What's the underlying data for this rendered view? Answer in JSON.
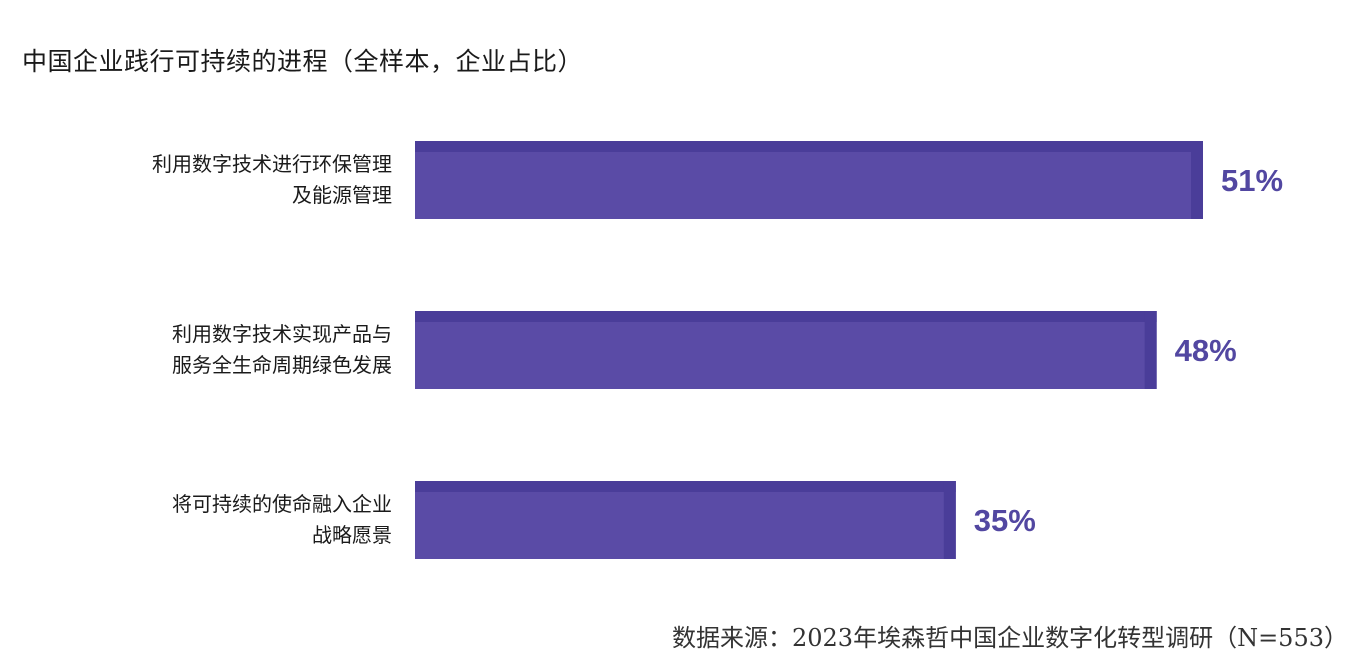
{
  "chart_data": {
    "type": "bar",
    "orientation": "horizontal",
    "title": "中国企业践行可持续的进程（全样本，企业占比）",
    "categories": [
      [
        "利用数字技术进行环保管理",
        "及能源管理"
      ],
      [
        "利用数字技术实现产品与",
        "服务全生命周期绿色发展"
      ],
      [
        "将可持续的使命融入企业",
        "战略愿景"
      ]
    ],
    "values": [
      51,
      48,
      35
    ],
    "value_labels": [
      "51%",
      "48%",
      "35%"
    ],
    "unit": "%",
    "grid": false,
    "legend": "none",
    "colors": {
      "bar": "#5a4ba6",
      "bar_edge": "#4a3d99",
      "label": "#5247a1"
    }
  },
  "source": "数据来源：2023年埃森哲中国企业数字化转型调研（N=553）"
}
